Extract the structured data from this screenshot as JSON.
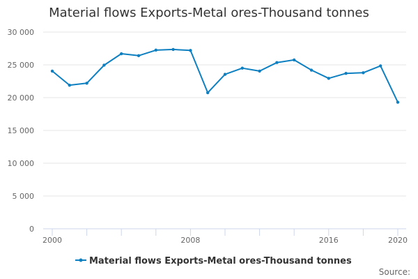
{
  "chart_data": {
    "type": "line",
    "title": "Material flows Exports-Metal ores-Thousand tonnes",
    "xlabel": "",
    "ylabel": "",
    "x": [
      2000,
      2001,
      2002,
      2003,
      2004,
      2005,
      2006,
      2007,
      2008,
      2009,
      2010,
      2011,
      2012,
      2013,
      2014,
      2015,
      2016,
      2017,
      2018,
      2019,
      2020
    ],
    "x_tick_labels": [
      "2000",
      "2008",
      "2016",
      "2020"
    ],
    "y_tick_labels": [
      "0",
      "5 000",
      "10 000",
      "15 000",
      "20 000",
      "25 000",
      "30 000"
    ],
    "ylim": [
      0,
      30000
    ],
    "xlim": [
      2000,
      2020
    ],
    "grid": true,
    "legend_position": "bottom-center",
    "series": [
      {
        "name": "Material flows Exports-Metal ores-Thousand tonnes",
        "color": "#0e80c1",
        "values": [
          24050,
          21900,
          22200,
          24950,
          26700,
          26400,
          27250,
          27350,
          27200,
          20750,
          23550,
          24500,
          24050,
          25350,
          25750,
          24200,
          22950,
          23700,
          23800,
          24850,
          19300
        ]
      }
    ]
  },
  "credits": "Source:"
}
